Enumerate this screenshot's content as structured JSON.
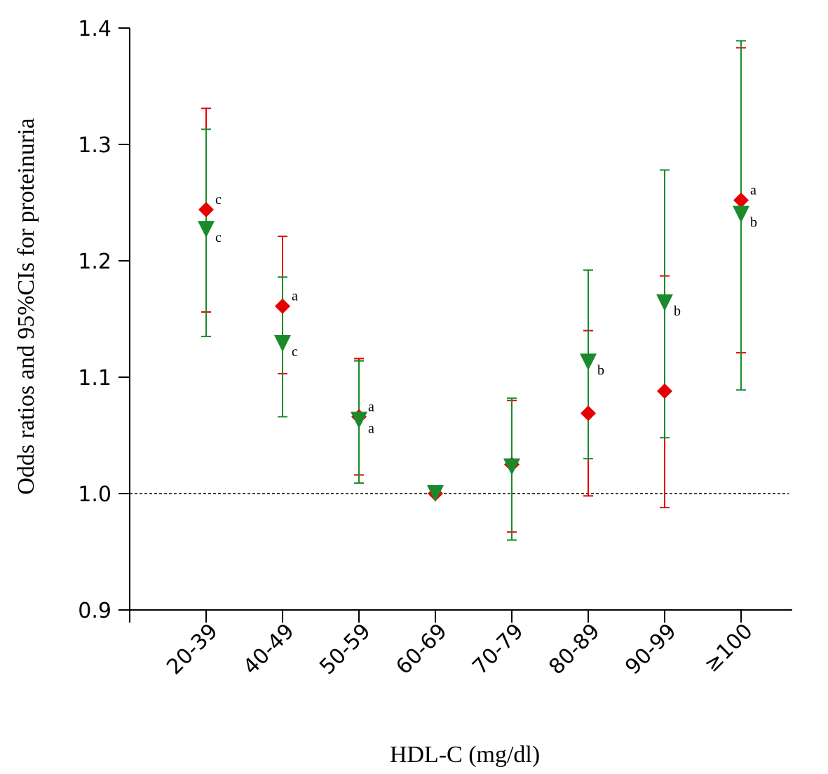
{
  "chart_data": {
    "type": "scatter",
    "title": "",
    "xlabel": "HDL-C (mg/dl)",
    "ylabel": "Odds ratios and 95%CIs for proteinuria",
    "ylim": [
      0.9,
      1.4
    ],
    "yticks": [
      "0.9",
      "1.0",
      "1.1",
      "1.2",
      "1.3",
      "1.4"
    ],
    "reference_line": 1.0,
    "categories": [
      "20-39",
      "40-49",
      "50-59",
      "60-69",
      "70-79",
      "80-89",
      "90-99",
      "≥100"
    ],
    "grid": false,
    "series": [
      {
        "marker": "diamond",
        "color": "#e60000",
        "values": [
          1.244,
          1.161,
          1.066,
          1.0,
          1.025,
          1.069,
          1.088,
          1.252
        ],
        "ci_low": [
          1.156,
          1.103,
          1.016,
          null,
          0.967,
          0.998,
          0.988,
          1.121
        ],
        "ci_high": [
          1.331,
          1.221,
          1.116,
          null,
          1.08,
          1.14,
          1.187,
          1.383
        ],
        "sig_labels": [
          "c",
          "a",
          "a",
          "",
          "",
          "",
          "",
          "a"
        ]
      },
      {
        "marker": "triangle-down",
        "color": "#1a8a2a",
        "values": [
          1.227,
          1.129,
          1.063,
          1.0,
          1.023,
          1.113,
          1.164,
          1.24
        ],
        "ci_low": [
          1.135,
          1.066,
          1.009,
          null,
          0.96,
          1.03,
          1.048,
          1.089
        ],
        "ci_high": [
          1.313,
          1.186,
          1.114,
          null,
          1.082,
          1.192,
          1.278,
          1.389
        ],
        "sig_labels": [
          "c",
          "c",
          "a",
          "",
          "",
          "b",
          "b",
          "b"
        ]
      }
    ]
  }
}
